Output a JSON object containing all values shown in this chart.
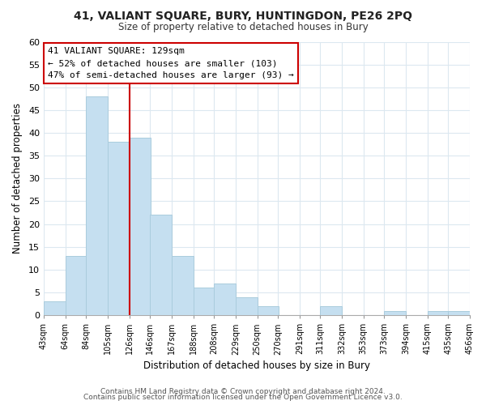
{
  "title": "41, VALIANT SQUARE, BURY, HUNTINGDON, PE26 2PQ",
  "subtitle": "Size of property relative to detached houses in Bury",
  "xlabel": "Distribution of detached houses by size in Bury",
  "ylabel": "Number of detached properties",
  "bar_left_edges": [
    43,
    64,
    84,
    105,
    126,
    146,
    167,
    188,
    208,
    229,
    250,
    270,
    291,
    311,
    332,
    353,
    373,
    394,
    415,
    435
  ],
  "bar_heights": [
    3,
    13,
    48,
    38,
    39,
    22,
    13,
    6,
    7,
    4,
    2,
    0,
    0,
    2,
    0,
    0,
    1,
    0,
    1,
    1
  ],
  "bin_width": 21,
  "bar_color": "#c5dff0",
  "bar_edgecolor": "#aaccdd",
  "vline_x": 126,
  "vline_color": "#cc0000",
  "ylim": [
    0,
    60
  ],
  "yticks": [
    0,
    5,
    10,
    15,
    20,
    25,
    30,
    35,
    40,
    45,
    50,
    55,
    60
  ],
  "tick_labels": [
    "43sqm",
    "64sqm",
    "84sqm",
    "105sqm",
    "126sqm",
    "146sqm",
    "167sqm",
    "188sqm",
    "208sqm",
    "229sqm",
    "250sqm",
    "270sqm",
    "291sqm",
    "311sqm",
    "332sqm",
    "353sqm",
    "373sqm",
    "394sqm",
    "415sqm",
    "435sqm",
    "456sqm"
  ],
  "annotation_title": "41 VALIANT SQUARE: 129sqm",
  "annotation_line1": "← 52% of detached houses are smaller (103)",
  "annotation_line2": "47% of semi-detached houses are larger (93) →",
  "box_color": "#ffffff",
  "box_edgecolor": "#cc0000",
  "footer1": "Contains HM Land Registry data © Crown copyright and database right 2024.",
  "footer2": "Contains public sector information licensed under the Open Government Licence v3.0.",
  "grid_color": "#dce8f0",
  "background_color": "#ffffff"
}
